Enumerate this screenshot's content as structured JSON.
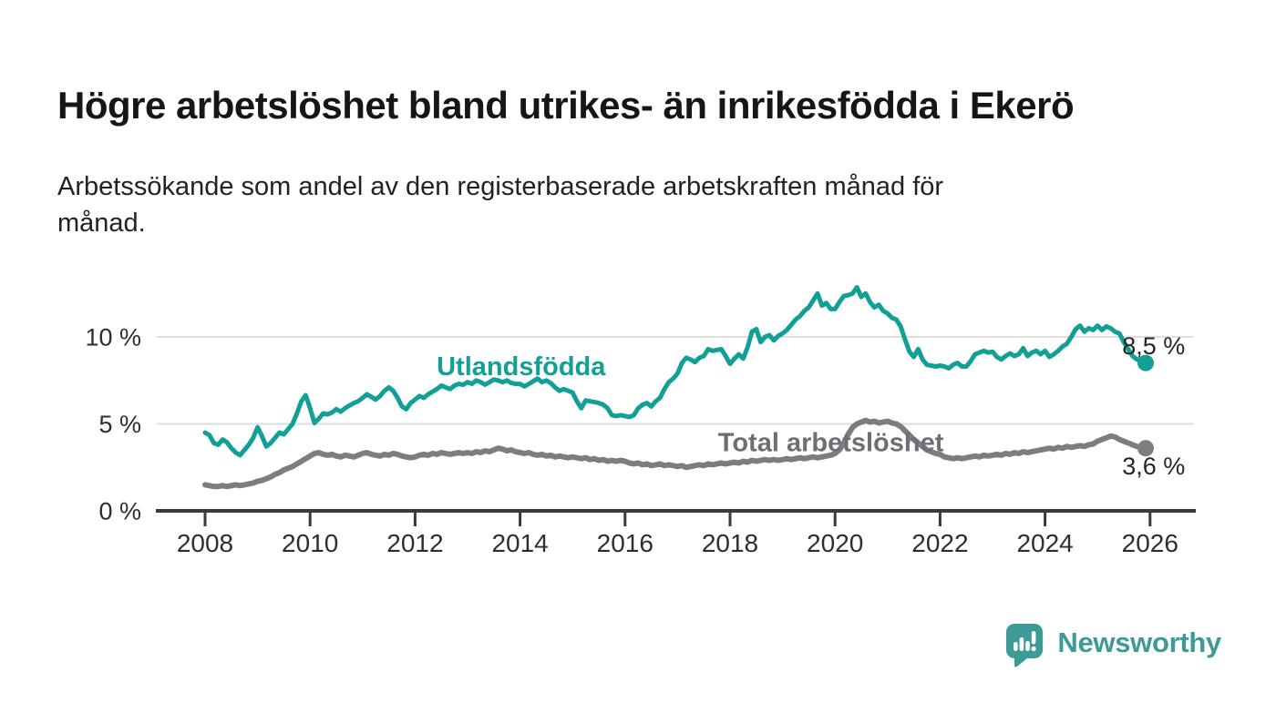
{
  "header": {
    "title": "Högre arbetslöshet bland utrikes- än inrikesfödda i Ekerö",
    "subtitle_lines": [
      "Arbetssökande som andel av den registerbaserade arbetskraften månad för",
      "månad."
    ]
  },
  "branding": {
    "name": "Newsworthy",
    "color": "#3d9b97",
    "icon": "newsworthy-speech-bubble-barchart-icon"
  },
  "chart_data": {
    "type": "line",
    "title": "Högre arbetslöshet bland utrikes- än inrikesfödda i Ekerö",
    "xlabel": "",
    "ylabel": "Arbetssökande som andel av den registerbaserade arbetskraften",
    "x_unit": "year-month",
    "x_start_year": 2008,
    "x_months_per_point": 1,
    "xlim": [
      2007.1,
      2027.0
    ],
    "ylim": [
      0,
      13.7
    ],
    "grid": "horizontal",
    "legend": "inline-labels",
    "x_ticks": [
      2008,
      2010,
      2012,
      2014,
      2016,
      2018,
      2020,
      2022,
      2024,
      2026
    ],
    "y_ticks": [
      {
        "value": 0,
        "label": "0 %"
      },
      {
        "value": 5,
        "label": "5 %"
      },
      {
        "value": 10,
        "label": "10 %"
      }
    ],
    "axis_color": "#3a3a3c",
    "grid_color": "#dedede",
    "tick_label_color": "#2e2e2e",
    "series": [
      {
        "name": "Utlandsfödda",
        "color": "#12a096",
        "label_color": "#12a096",
        "end_value_label": "8,5 %",
        "values": [
          4.5,
          4.35,
          3.9,
          3.8,
          4.1,
          3.95,
          3.6,
          3.35,
          3.2,
          3.5,
          3.8,
          4.2,
          4.8,
          4.3,
          3.7,
          3.9,
          4.2,
          4.5,
          4.4,
          4.7,
          5.0,
          5.6,
          6.3,
          6.65,
          5.9,
          5.05,
          5.3,
          5.6,
          5.55,
          5.65,
          5.85,
          5.7,
          5.9,
          6.05,
          6.2,
          6.3,
          6.5,
          6.7,
          6.55,
          6.4,
          6.6,
          6.9,
          7.1,
          6.9,
          6.5,
          6.0,
          5.85,
          6.2,
          6.4,
          6.6,
          6.5,
          6.7,
          6.85,
          7.0,
          7.2,
          7.1,
          7.0,
          7.2,
          7.3,
          7.25,
          7.4,
          7.3,
          7.5,
          7.4,
          7.25,
          7.4,
          7.55,
          7.5,
          7.4,
          7.5,
          7.35,
          7.3,
          7.3,
          7.15,
          7.3,
          7.45,
          7.6,
          7.4,
          7.5,
          7.35,
          7.1,
          6.9,
          7.0,
          6.9,
          6.8,
          6.3,
          5.9,
          6.35,
          6.3,
          6.25,
          6.2,
          6.1,
          5.9,
          5.5,
          5.45,
          5.5,
          5.45,
          5.4,
          5.5,
          5.9,
          6.1,
          6.2,
          6.0,
          6.3,
          6.5,
          7.0,
          7.4,
          7.6,
          7.9,
          8.5,
          8.8,
          8.7,
          8.55,
          8.8,
          8.9,
          9.3,
          9.2,
          9.25,
          9.3,
          8.9,
          8.45,
          8.75,
          9.0,
          8.75,
          9.4,
          10.3,
          10.45,
          9.7,
          10.0,
          10.1,
          9.8,
          10.05,
          10.2,
          10.4,
          10.7,
          11.0,
          11.2,
          11.5,
          11.7,
          12.1,
          12.5,
          11.8,
          11.95,
          11.6,
          11.6,
          12.0,
          12.35,
          12.4,
          12.5,
          12.85,
          12.3,
          12.5,
          12.0,
          11.7,
          11.85,
          11.5,
          11.35,
          11.1,
          11.0,
          10.6,
          9.85,
          9.15,
          8.85,
          9.3,
          8.7,
          8.4,
          8.35,
          8.3,
          8.35,
          8.3,
          8.2,
          8.4,
          8.5,
          8.3,
          8.3,
          8.6,
          9.0,
          9.1,
          9.2,
          9.1,
          9.15,
          8.85,
          8.7,
          8.9,
          9.05,
          8.9,
          9.0,
          9.35,
          8.9,
          9.1,
          9.2,
          9.0,
          9.2,
          8.85,
          9.0,
          9.2,
          9.45,
          9.6,
          10.0,
          10.45,
          10.65,
          10.3,
          10.5,
          10.4,
          10.65,
          10.4,
          10.6,
          10.5,
          10.3,
          10.2,
          9.7,
          9.3,
          8.9,
          8.7,
          8.6,
          8.5
        ]
      },
      {
        "name": "Total arbetslöshet",
        "color": "#7c7c81",
        "label_color": "#6e6e74",
        "end_value_label": "3,6 %",
        "values": [
          1.5,
          1.45,
          1.4,
          1.4,
          1.45,
          1.4,
          1.45,
          1.5,
          1.45,
          1.5,
          1.55,
          1.6,
          1.7,
          1.75,
          1.85,
          1.95,
          2.1,
          2.2,
          2.35,
          2.45,
          2.55,
          2.7,
          2.85,
          3.0,
          3.15,
          3.3,
          3.35,
          3.25,
          3.2,
          3.25,
          3.15,
          3.1,
          3.2,
          3.15,
          3.1,
          3.2,
          3.3,
          3.35,
          3.25,
          3.2,
          3.15,
          3.25,
          3.2,
          3.3,
          3.25,
          3.15,
          3.1,
          3.05,
          3.1,
          3.2,
          3.25,
          3.2,
          3.3,
          3.25,
          3.35,
          3.3,
          3.25,
          3.3,
          3.35,
          3.3,
          3.35,
          3.3,
          3.4,
          3.35,
          3.45,
          3.4,
          3.5,
          3.6,
          3.55,
          3.45,
          3.5,
          3.4,
          3.35,
          3.3,
          3.35,
          3.25,
          3.2,
          3.25,
          3.15,
          3.2,
          3.1,
          3.15,
          3.1,
          3.05,
          3.1,
          3.05,
          3.0,
          3.05,
          2.95,
          3.0,
          2.9,
          2.95,
          2.85,
          2.9,
          2.85,
          2.9,
          2.85,
          2.75,
          2.7,
          2.75,
          2.65,
          2.7,
          2.6,
          2.65,
          2.7,
          2.6,
          2.65,
          2.6,
          2.55,
          2.6,
          2.5,
          2.55,
          2.6,
          2.65,
          2.6,
          2.7,
          2.65,
          2.7,
          2.75,
          2.7,
          2.75,
          2.8,
          2.75,
          2.85,
          2.8,
          2.9,
          2.85,
          2.9,
          2.95,
          2.9,
          2.95,
          2.9,
          2.95,
          3.0,
          2.95,
          3.0,
          3.05,
          3.0,
          3.05,
          3.1,
          3.05,
          3.1,
          3.15,
          3.2,
          3.3,
          3.5,
          3.9,
          4.4,
          4.8,
          5.0,
          5.1,
          5.2,
          5.1,
          5.15,
          5.05,
          5.1,
          5.15,
          5.05,
          5.0,
          4.85,
          4.6,
          4.35,
          4.1,
          3.9,
          3.7,
          3.5,
          3.4,
          3.3,
          3.25,
          3.1,
          3.05,
          3.0,
          3.05,
          3.0,
          3.05,
          3.1,
          3.15,
          3.1,
          3.2,
          3.15,
          3.2,
          3.25,
          3.2,
          3.3,
          3.25,
          3.35,
          3.3,
          3.4,
          3.35,
          3.4,
          3.45,
          3.5,
          3.55,
          3.6,
          3.55,
          3.65,
          3.6,
          3.7,
          3.65,
          3.7,
          3.75,
          3.7,
          3.8,
          3.85,
          4.0,
          4.1,
          4.2,
          4.3,
          4.25,
          4.1,
          4.0,
          3.9,
          3.8,
          3.7,
          3.65,
          3.6
        ]
      }
    ],
    "annotations": [
      {
        "text": "Utlandsfödda",
        "role": "series-label",
        "series": 0,
        "x_year": 2014.02,
        "baseline_pct": 7.8,
        "anchor": "middle",
        "bold": true,
        "size": 29
      },
      {
        "text": "Total arbetslöshet",
        "role": "series-label",
        "series": 1,
        "x_year": 2019.92,
        "baseline_pct": 3.42,
        "anchor": "middle",
        "bold": true,
        "size": 29
      },
      {
        "text": "8,5 %",
        "role": "end-value-label",
        "series": null,
        "x_year": 2025.47,
        "baseline_pct": 9.0,
        "anchor": "start",
        "bold": false,
        "size": 27
      },
      {
        "text": "3,6 %",
        "role": "end-value-label",
        "series": null,
        "x_year": 2025.47,
        "baseline_pct": 2.1,
        "anchor": "start",
        "bold": false,
        "size": 27
      }
    ],
    "annotation_text_color": "#262626"
  }
}
